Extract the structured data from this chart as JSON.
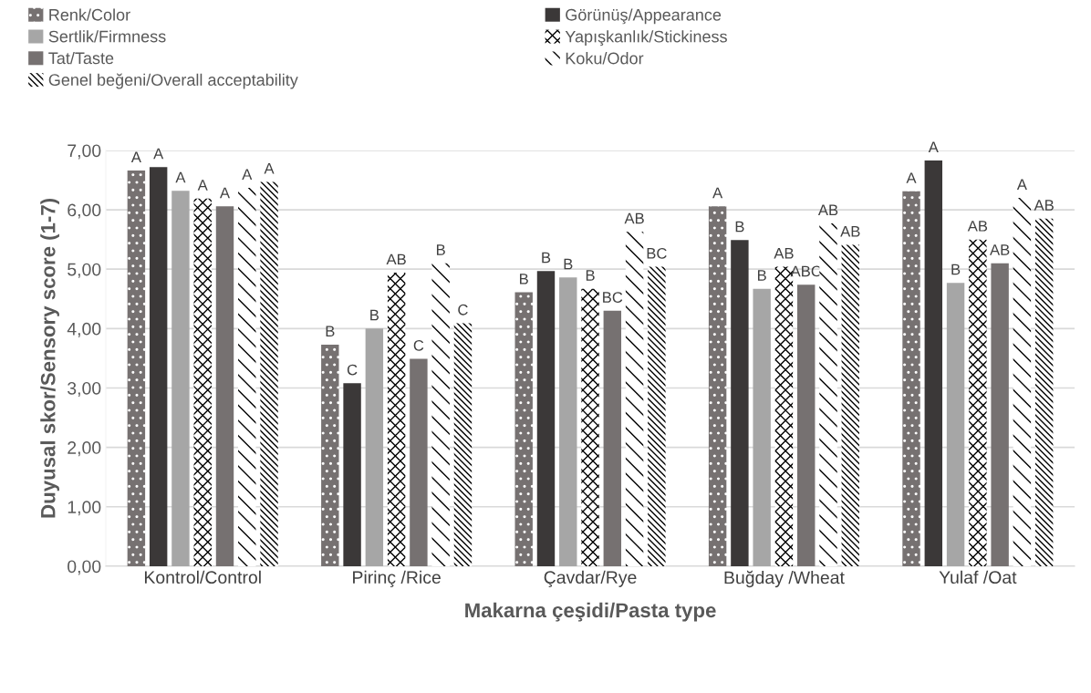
{
  "chart_data": {
    "type": "bar",
    "xlabel": "Makarna çeşidi/Pasta type",
    "ylabel": "Duyusal skor/Sensory score (1-7)",
    "categories": [
      "Kontrol/Control",
      "Pirinç /Rice",
      "Çavdar/Rye",
      "Buğday /Wheat",
      "Yulaf /Oat"
    ],
    "ylim": [
      0,
      7
    ],
    "yticks": [
      {
        "value": 0,
        "label": "0,00"
      },
      {
        "value": 1,
        "label": "1,00"
      },
      {
        "value": 2,
        "label": "2,00"
      },
      {
        "value": 3,
        "label": "3,00"
      },
      {
        "value": 4,
        "label": "4,00"
      },
      {
        "value": 5,
        "label": "5,00"
      },
      {
        "value": 6,
        "label": "6,00"
      },
      {
        "value": 7,
        "label": "7,00"
      }
    ],
    "grid": "y",
    "legend": "top",
    "series": [
      {
        "name": "Renk/Color",
        "color": "#767171",
        "values": [
          6.66,
          3.73,
          4.61,
          6.06,
          6.31
        ],
        "value_labels": [
          "A",
          "B",
          "B",
          "A",
          "A"
        ]
      },
      {
        "name": "Görünüş/Appearance",
        "color": "#3b3838",
        "values": [
          6.72,
          3.08,
          4.97,
          5.49,
          6.83
        ],
        "value_labels": [
          "A",
          "C",
          "B",
          "B",
          "A"
        ]
      },
      {
        "name": "Sertlik/Firmness",
        "color": "#a6a6a6",
        "values": [
          6.32,
          4.0,
          4.86,
          4.67,
          4.77
        ],
        "value_labels": [
          "A",
          "B",
          "B",
          "B",
          "B"
        ]
      },
      {
        "name": "Yapışkanlık/Stickiness",
        "color": "#ffffff",
        "values": [
          6.19,
          4.94,
          4.67,
          5.04,
          5.5
        ],
        "value_labels": [
          "A",
          "AB",
          "B",
          "AB",
          "AB"
        ]
      },
      {
        "name": "Tat/Taste",
        "color": "#767171",
        "values": [
          6.06,
          3.49,
          4.3,
          4.74,
          5.1
        ],
        "value_labels": [
          "A",
          "C",
          "BC",
          "ABC",
          "AB"
        ]
      },
      {
        "name": "Koku/Odor",
        "color": "#ffffff",
        "values": [
          6.37,
          5.1,
          5.63,
          5.77,
          6.2
        ],
        "value_labels": [
          "A",
          "B",
          "AB",
          "AB",
          "A"
        ]
      },
      {
        "name": "Genel beğeni/Overall acceptability",
        "color": "#ffffff",
        "values": [
          6.47,
          4.09,
          5.04,
          5.41,
          5.85
        ],
        "value_labels": [
          "A",
          "C",
          "BC",
          "AB",
          "AB"
        ]
      }
    ]
  }
}
